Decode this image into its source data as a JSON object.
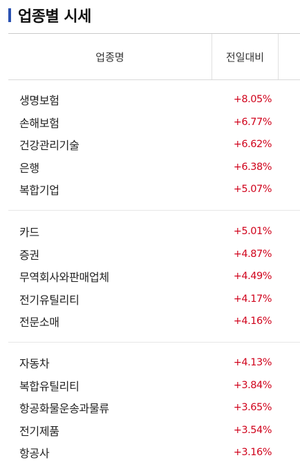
{
  "title": "업종별 시세",
  "colors": {
    "accent": "#2b52b2",
    "rise": "#d0021b"
  },
  "header": {
    "name_col": "업종명",
    "change_col": "전일대비"
  },
  "groups": [
    {
      "rows": [
        {
          "name": "생명보험",
          "change": "+8.05%"
        },
        {
          "name": "손해보험",
          "change": "+6.77%"
        },
        {
          "name": "건강관리기술",
          "change": "+6.62%"
        },
        {
          "name": "은행",
          "change": "+6.38%"
        },
        {
          "name": "복합기업",
          "change": "+5.07%"
        }
      ]
    },
    {
      "rows": [
        {
          "name": "카드",
          "change": "+5.01%"
        },
        {
          "name": "증권",
          "change": "+4.87%"
        },
        {
          "name": "무역회사와판매업체",
          "change": "+4.49%"
        },
        {
          "name": "전기유틸리티",
          "change": "+4.17%"
        },
        {
          "name": "전문소매",
          "change": "+4.16%"
        }
      ]
    },
    {
      "rows": [
        {
          "name": "자동차",
          "change": "+4.13%"
        },
        {
          "name": "복합유틸리티",
          "change": "+3.84%"
        },
        {
          "name": "항공화물운송과물류",
          "change": "+3.65%"
        },
        {
          "name": "전기제품",
          "change": "+3.54%"
        },
        {
          "name": "항공사",
          "change": "+3.16%"
        }
      ]
    }
  ]
}
